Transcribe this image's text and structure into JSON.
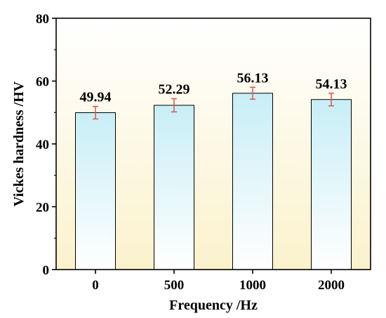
{
  "chart_data": {
    "type": "bar",
    "title": "",
    "xlabel": "Frequency /Hz",
    "ylabel": "Vickes hardness /HV",
    "categories": [
      "0",
      "500",
      "1000",
      "2000"
    ],
    "values": [
      49.94,
      52.29,
      56.13,
      54.13
    ],
    "value_labels": [
      "49.94",
      "52.29",
      "56.13",
      "54.13"
    ],
    "error": [
      2.0,
      2.1,
      1.9,
      2.0
    ],
    "ylim": [
      0,
      80
    ],
    "yticks": [
      0,
      20,
      40,
      60,
      80
    ],
    "grid": false,
    "colors": {
      "bar_top": "#c8eef6",
      "bar_bottom": "#ffffff",
      "bg_top": "#ffffff",
      "bg_bottom": "#fbf2cc",
      "error_bar": "#e0524a",
      "axis": "#000000"
    }
  }
}
